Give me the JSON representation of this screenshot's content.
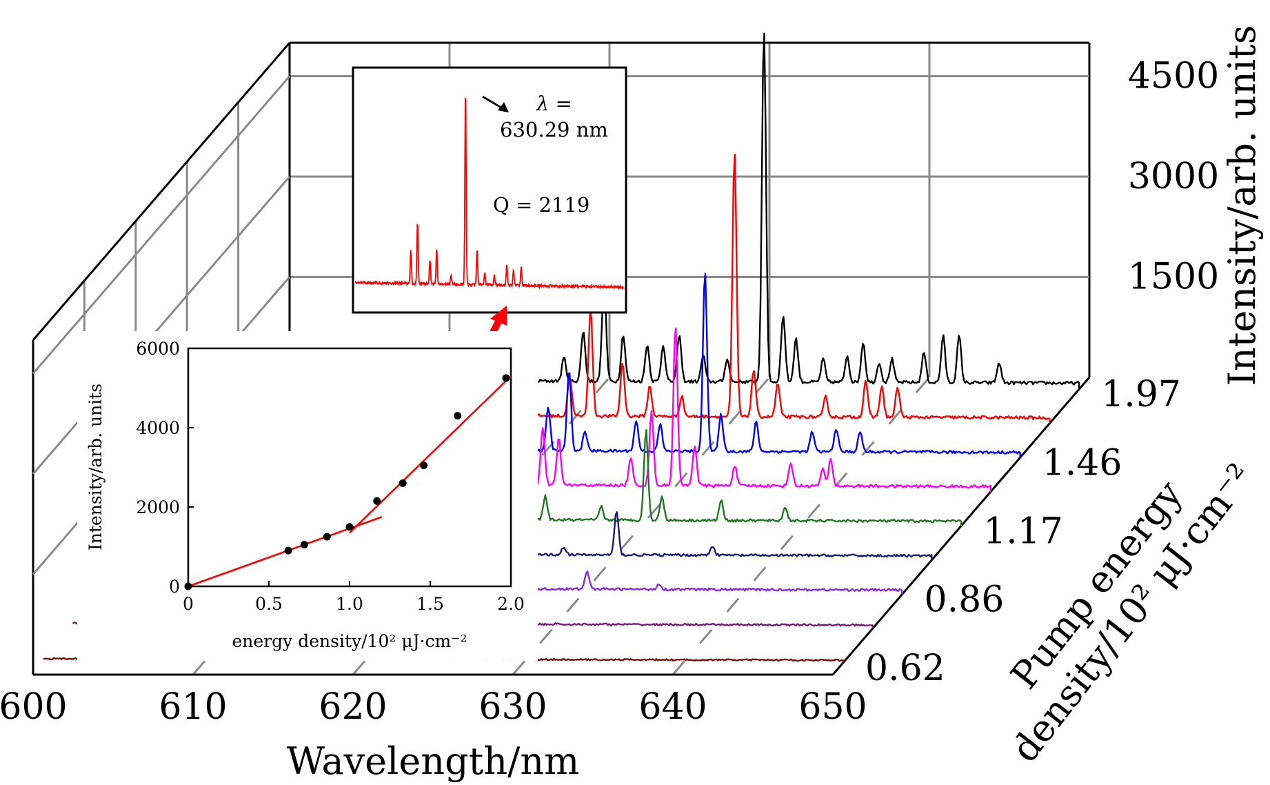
{
  "chart_data": [
    {
      "type": "line",
      "subtype": "3d-waterfall",
      "xlabel": "Wavelength/nm",
      "ylabel": "Pump energy density/10² μJ·cm⁻²",
      "zlabel": "Intensity/arb. units",
      "x_ticks": [
        "600",
        "610",
        "620",
        "630",
        "640",
        "650"
      ],
      "xlim": [
        600,
        650
      ],
      "y_tick_labels": [
        "0.62",
        "0.86",
        "1.17",
        "1.46",
        "1.97"
      ],
      "z_ticks": [
        "1500",
        "3000",
        "4500"
      ],
      "zlim": [
        0,
        5000
      ],
      "grid": true,
      "series": [
        {
          "pump": 0.62,
          "color": "#7a0a0a",
          "baseline": 60,
          "peaks": [
            [
              636.5,
              5
            ]
          ]
        },
        {
          "pump": 0.72,
          "color": "#7a1a7a",
          "baseline": 80,
          "peaks": [
            [
              630.3,
              15
            ],
            [
              633.0,
              8
            ]
          ]
        },
        {
          "pump": 0.86,
          "color": "#8a2be2",
          "baseline": 100,
          "peaks": [
            [
              630.3,
              280
            ],
            [
              634.8,
              80
            ]
          ]
        },
        {
          "pump": 1.0,
          "color": "#1a1a7a",
          "baseline": 100,
          "peaks": [
            [
              627.0,
              120
            ],
            [
              630.3,
              650
            ],
            [
              636.3,
              140
            ]
          ]
        },
        {
          "pump": 1.17,
          "color": "#1e7a1e",
          "baseline": 110,
          "peaks": [
            [
              623.0,
              650
            ],
            [
              624.0,
              350
            ],
            [
              627.5,
              200
            ],
            [
              630.3,
              1350
            ],
            [
              631.3,
              350
            ],
            [
              635.0,
              300
            ],
            [
              639.0,
              200
            ]
          ]
        },
        {
          "pump": 1.33,
          "color": "#ff00ff",
          "baseline": 120,
          "peaks": [
            [
              622.0,
              850
            ],
            [
              623.0,
              700
            ],
            [
              627.5,
              400
            ],
            [
              628.8,
              1100
            ],
            [
              630.3,
              2400
            ],
            [
              631.5,
              600
            ],
            [
              634.0,
              300
            ],
            [
              637.5,
              350
            ],
            [
              639.5,
              250
            ],
            [
              640.0,
              400
            ]
          ]
        },
        {
          "pump": 1.46,
          "color": "#0000ff",
          "baseline": 120,
          "peaks": [
            [
              620.5,
              650
            ],
            [
              621.8,
              1200
            ],
            [
              622.8,
              300
            ],
            [
              626.0,
              450
            ],
            [
              627.5,
              400
            ],
            [
              630.3,
              2700
            ],
            [
              631.3,
              550
            ],
            [
              633.5,
              450
            ],
            [
              637.0,
              300
            ],
            [
              638.5,
              350
            ],
            [
              640.0,
              300
            ]
          ]
        },
        {
          "pump": 1.67,
          "color": "#ff0000",
          "baseline": 130,
          "peaks": [
            [
              620.0,
              600
            ],
            [
              621.3,
              1600
            ],
            [
              623.3,
              800
            ],
            [
              625.0,
              450
            ],
            [
              627.0,
              300
            ],
            [
              630.3,
              3950
            ],
            [
              631.5,
              700
            ],
            [
              633.0,
              500
            ],
            [
              636.0,
              300
            ],
            [
              638.5,
              550
            ],
            [
              639.5,
              450
            ],
            [
              640.5,
              450
            ]
          ]
        },
        {
          "pump": 1.97,
          "color": "#000000",
          "baseline": 140,
          "peaks": [
            [
              617.8,
              350
            ],
            [
              619.0,
              750
            ],
            [
              620.3,
              1500
            ],
            [
              621.5,
              700
            ],
            [
              623.0,
              550
            ],
            [
              624.0,
              550
            ],
            [
              625.0,
              700
            ],
            [
              626.5,
              400
            ],
            [
              628.0,
              350
            ],
            [
              630.3,
              5250
            ],
            [
              631.5,
              1000
            ],
            [
              632.3,
              650
            ],
            [
              634.0,
              350
            ],
            [
              635.5,
              400
            ],
            [
              636.5,
              600
            ],
            [
              637.5,
              300
            ],
            [
              638.3,
              350
            ],
            [
              640.3,
              450
            ],
            [
              641.5,
              700
            ],
            [
              642.5,
              700
            ],
            [
              645.0,
              300
            ]
          ]
        }
      ]
    },
    {
      "type": "scatter",
      "inset": true,
      "xlabel": "energy density/10² μJ·cm⁻²",
      "ylabel": "Intensity/arb. units",
      "x_ticks": [
        "0",
        "0.5",
        "1.0",
        "1.5",
        "2.0"
      ],
      "y_ticks": [
        "0",
        "2000",
        "4000",
        "6000"
      ],
      "xlim": [
        0,
        2.0
      ],
      "ylim": [
        0,
        6000
      ],
      "x": [
        0,
        0.62,
        0.72,
        0.86,
        1.0,
        1.17,
        1.33,
        1.46,
        1.67,
        1.97
      ],
      "y": [
        0,
        900,
        1050,
        1250,
        1500,
        2150,
        2600,
        3050,
        4300,
        5250
      ],
      "fit_lines": [
        {
          "color": "#ff0000",
          "x": [
            0,
            1.2
          ],
          "y": [
            0,
            1750
          ]
        },
        {
          "color": "#ff0000",
          "x": [
            1.0,
            2.0
          ],
          "y": [
            1350,
            5300
          ]
        }
      ]
    },
    {
      "type": "line",
      "inset": true,
      "color": "#ff0000",
      "annotation_lambda_1": "λ =",
      "annotation_lambda_2": "630.29 nm",
      "annotation_q": "Q = 2119",
      "peaks": [
        [
          617.8,
          0.17
        ],
        [
          618.5,
          0.32
        ],
        [
          619.8,
          0.12
        ],
        [
          620.5,
          0.18
        ],
        [
          622.0,
          0.05
        ],
        [
          623.5,
          1.0
        ],
        [
          624.7,
          0.18
        ],
        [
          625.5,
          0.06
        ],
        [
          626.5,
          0.05
        ],
        [
          627.8,
          0.1
        ],
        [
          628.5,
          0.08
        ],
        [
          629.3,
          0.1
        ]
      ]
    }
  ]
}
